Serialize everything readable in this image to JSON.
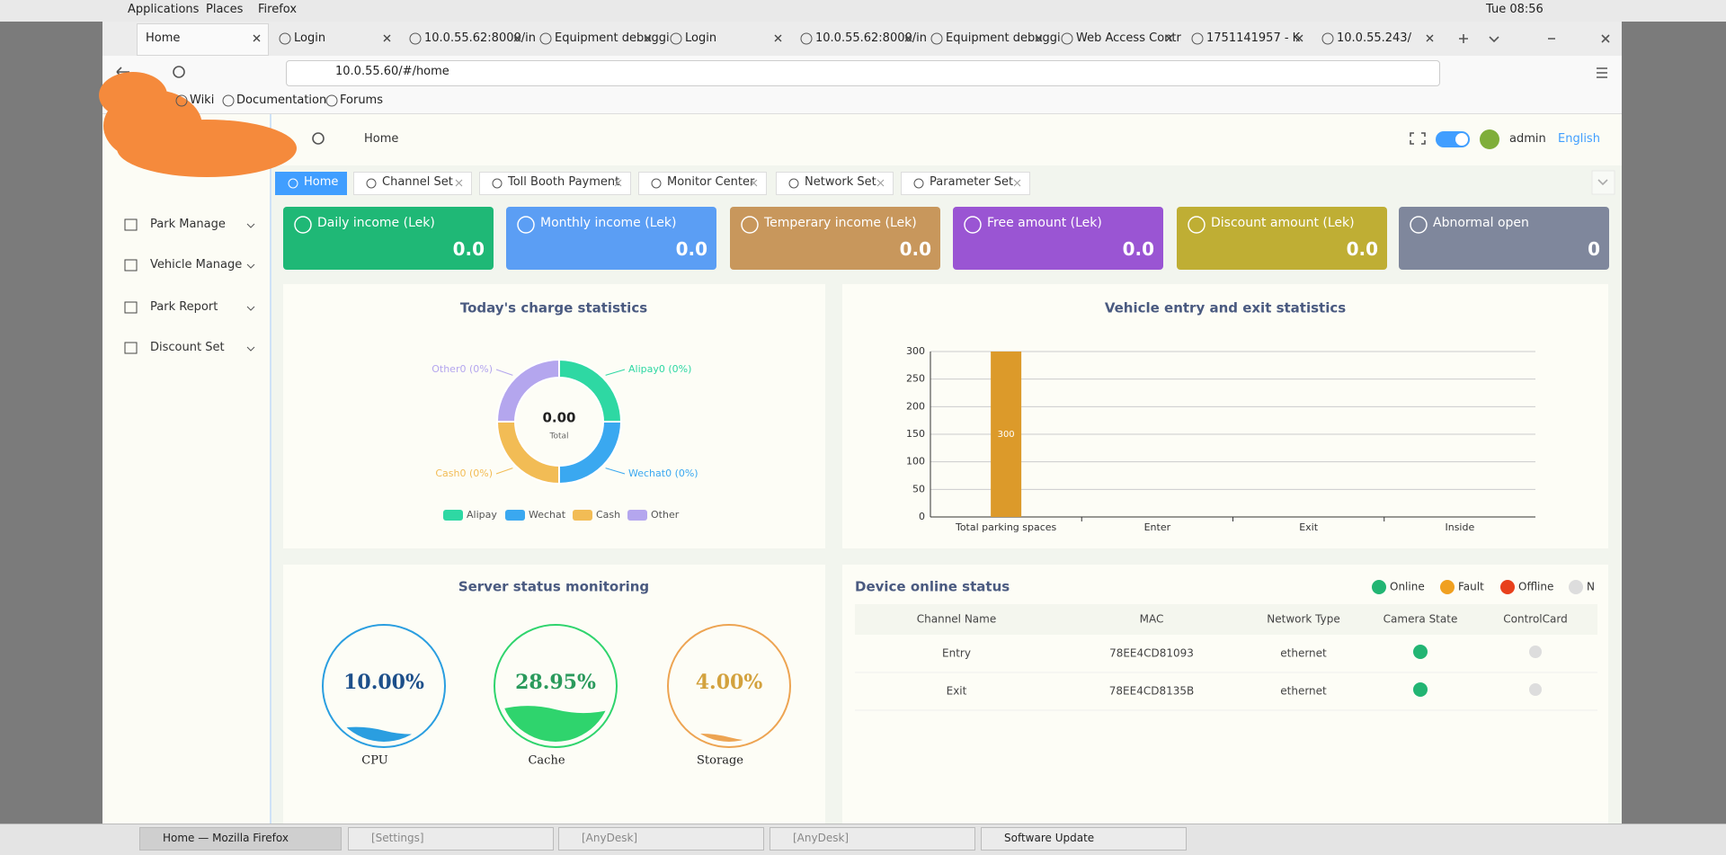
{
  "desktop": {
    "menu": [
      "Applications",
      "Places",
      "Firefox"
    ],
    "clock": "Tue 08:56"
  },
  "browser": {
    "tabs": [
      "Home",
      "Login",
      "10.0.55.62:8000/in",
      "Equipment debuggi",
      "Login",
      "10.0.55.62:8000/in",
      "Equipment debuggi",
      "Web Access Contr",
      "1751141957 - K",
      "10.0.55.243/"
    ],
    "url": "10.0.55.60/#/home",
    "bookmarks": [
      "Wiki",
      "Documentation",
      "Forums"
    ]
  },
  "app": {
    "header": {
      "breadcrumb": "Home",
      "user": "admin",
      "language": "English"
    },
    "sidebar": [
      "Park Manage",
      "Vehicle Manage",
      "Park Report",
      "Discount Set"
    ],
    "tabs": [
      "Home",
      "Channel Set",
      "Toll Booth Payment",
      "Monitor Center",
      "Network Set",
      "Parameter Set"
    ],
    "cards": [
      {
        "title": "Daily income (Lek)",
        "value": "0.0",
        "color": "#1fb876"
      },
      {
        "title": "Monthly income (Lek)",
        "value": "0.0",
        "color": "#5b9ef4"
      },
      {
        "title": "Temperary income (Lek)",
        "value": "0.0",
        "color": "#c8975c"
      },
      {
        "title": "Free amount (Lek)",
        "value": "0.0",
        "color": "#9a55d3"
      },
      {
        "title": "Discount amount (Lek)",
        "value": "0.0",
        "color": "#bfae34"
      },
      {
        "title": "Abnormal open",
        "value": "0",
        "color": "#7f879c"
      }
    ],
    "charge": {
      "title": "Today's charge statistics",
      "total": "0.00",
      "total_label": "Total",
      "slices": [
        {
          "name": "Alipay",
          "label": "Alipay0 (0%)",
          "color": "#2ed8a3"
        },
        {
          "name": "Wechat",
          "label": "Wechat0 (0%)",
          "color": "#3aa8f0"
        },
        {
          "name": "Cash",
          "label": "Cash0 (0%)",
          "color": "#f2bc55"
        },
        {
          "name": "Other",
          "label": "Other0 (0%)",
          "color": "#b4a6ee"
        }
      ]
    },
    "vehicle": {
      "type": "bar",
      "title": "Vehicle entry and exit statistics",
      "categories": [
        "Total parking spaces",
        "Enter",
        "Exit",
        "Inside"
      ],
      "values": [
        300,
        0,
        0,
        0
      ],
      "color": "#dc9a2a",
      "ylim": [
        0,
        300
      ],
      "yticks": [
        0,
        50,
        100,
        150,
        200,
        250,
        300
      ],
      "grid": true
    },
    "server": {
      "title": "Server status monitoring",
      "gauges": [
        {
          "name": "CPU",
          "value": 10,
          "value_label": "10.00%",
          "color": "#2a9ee0",
          "text_color": "#1d4f8a"
        },
        {
          "name": "Cache",
          "value": 28.95,
          "value_label": "28.95%",
          "color": "#2fd46d",
          "text_color": "#2a9a5c"
        },
        {
          "name": "Storage",
          "value": 4,
          "value_label": "4.00%",
          "color": "#eda452",
          "text_color": "#d3a23e"
        }
      ]
    },
    "devices": {
      "title": "Device online status",
      "legend": [
        {
          "name": "Online",
          "color": "#22b573"
        },
        {
          "name": "Fault",
          "color": "#f0a020"
        },
        {
          "name": "Offline",
          "color": "#e8401c"
        },
        {
          "name": "N",
          "color": "#dddddd"
        }
      ],
      "columns": [
        "Channel Name",
        "MAC",
        "Network Type",
        "Camera State",
        "ControlCard"
      ],
      "rows": [
        [
          "Entry",
          "78EE4CD81093",
          "ethernet"
        ],
        [
          "Exit",
          "78EE4CD8135B",
          "ethernet"
        ]
      ]
    }
  },
  "taskbar": [
    "Home — Mozilla Firefox",
    "[Settings]",
    "[AnyDesk]",
    "[AnyDesk]",
    "Software Update"
  ]
}
